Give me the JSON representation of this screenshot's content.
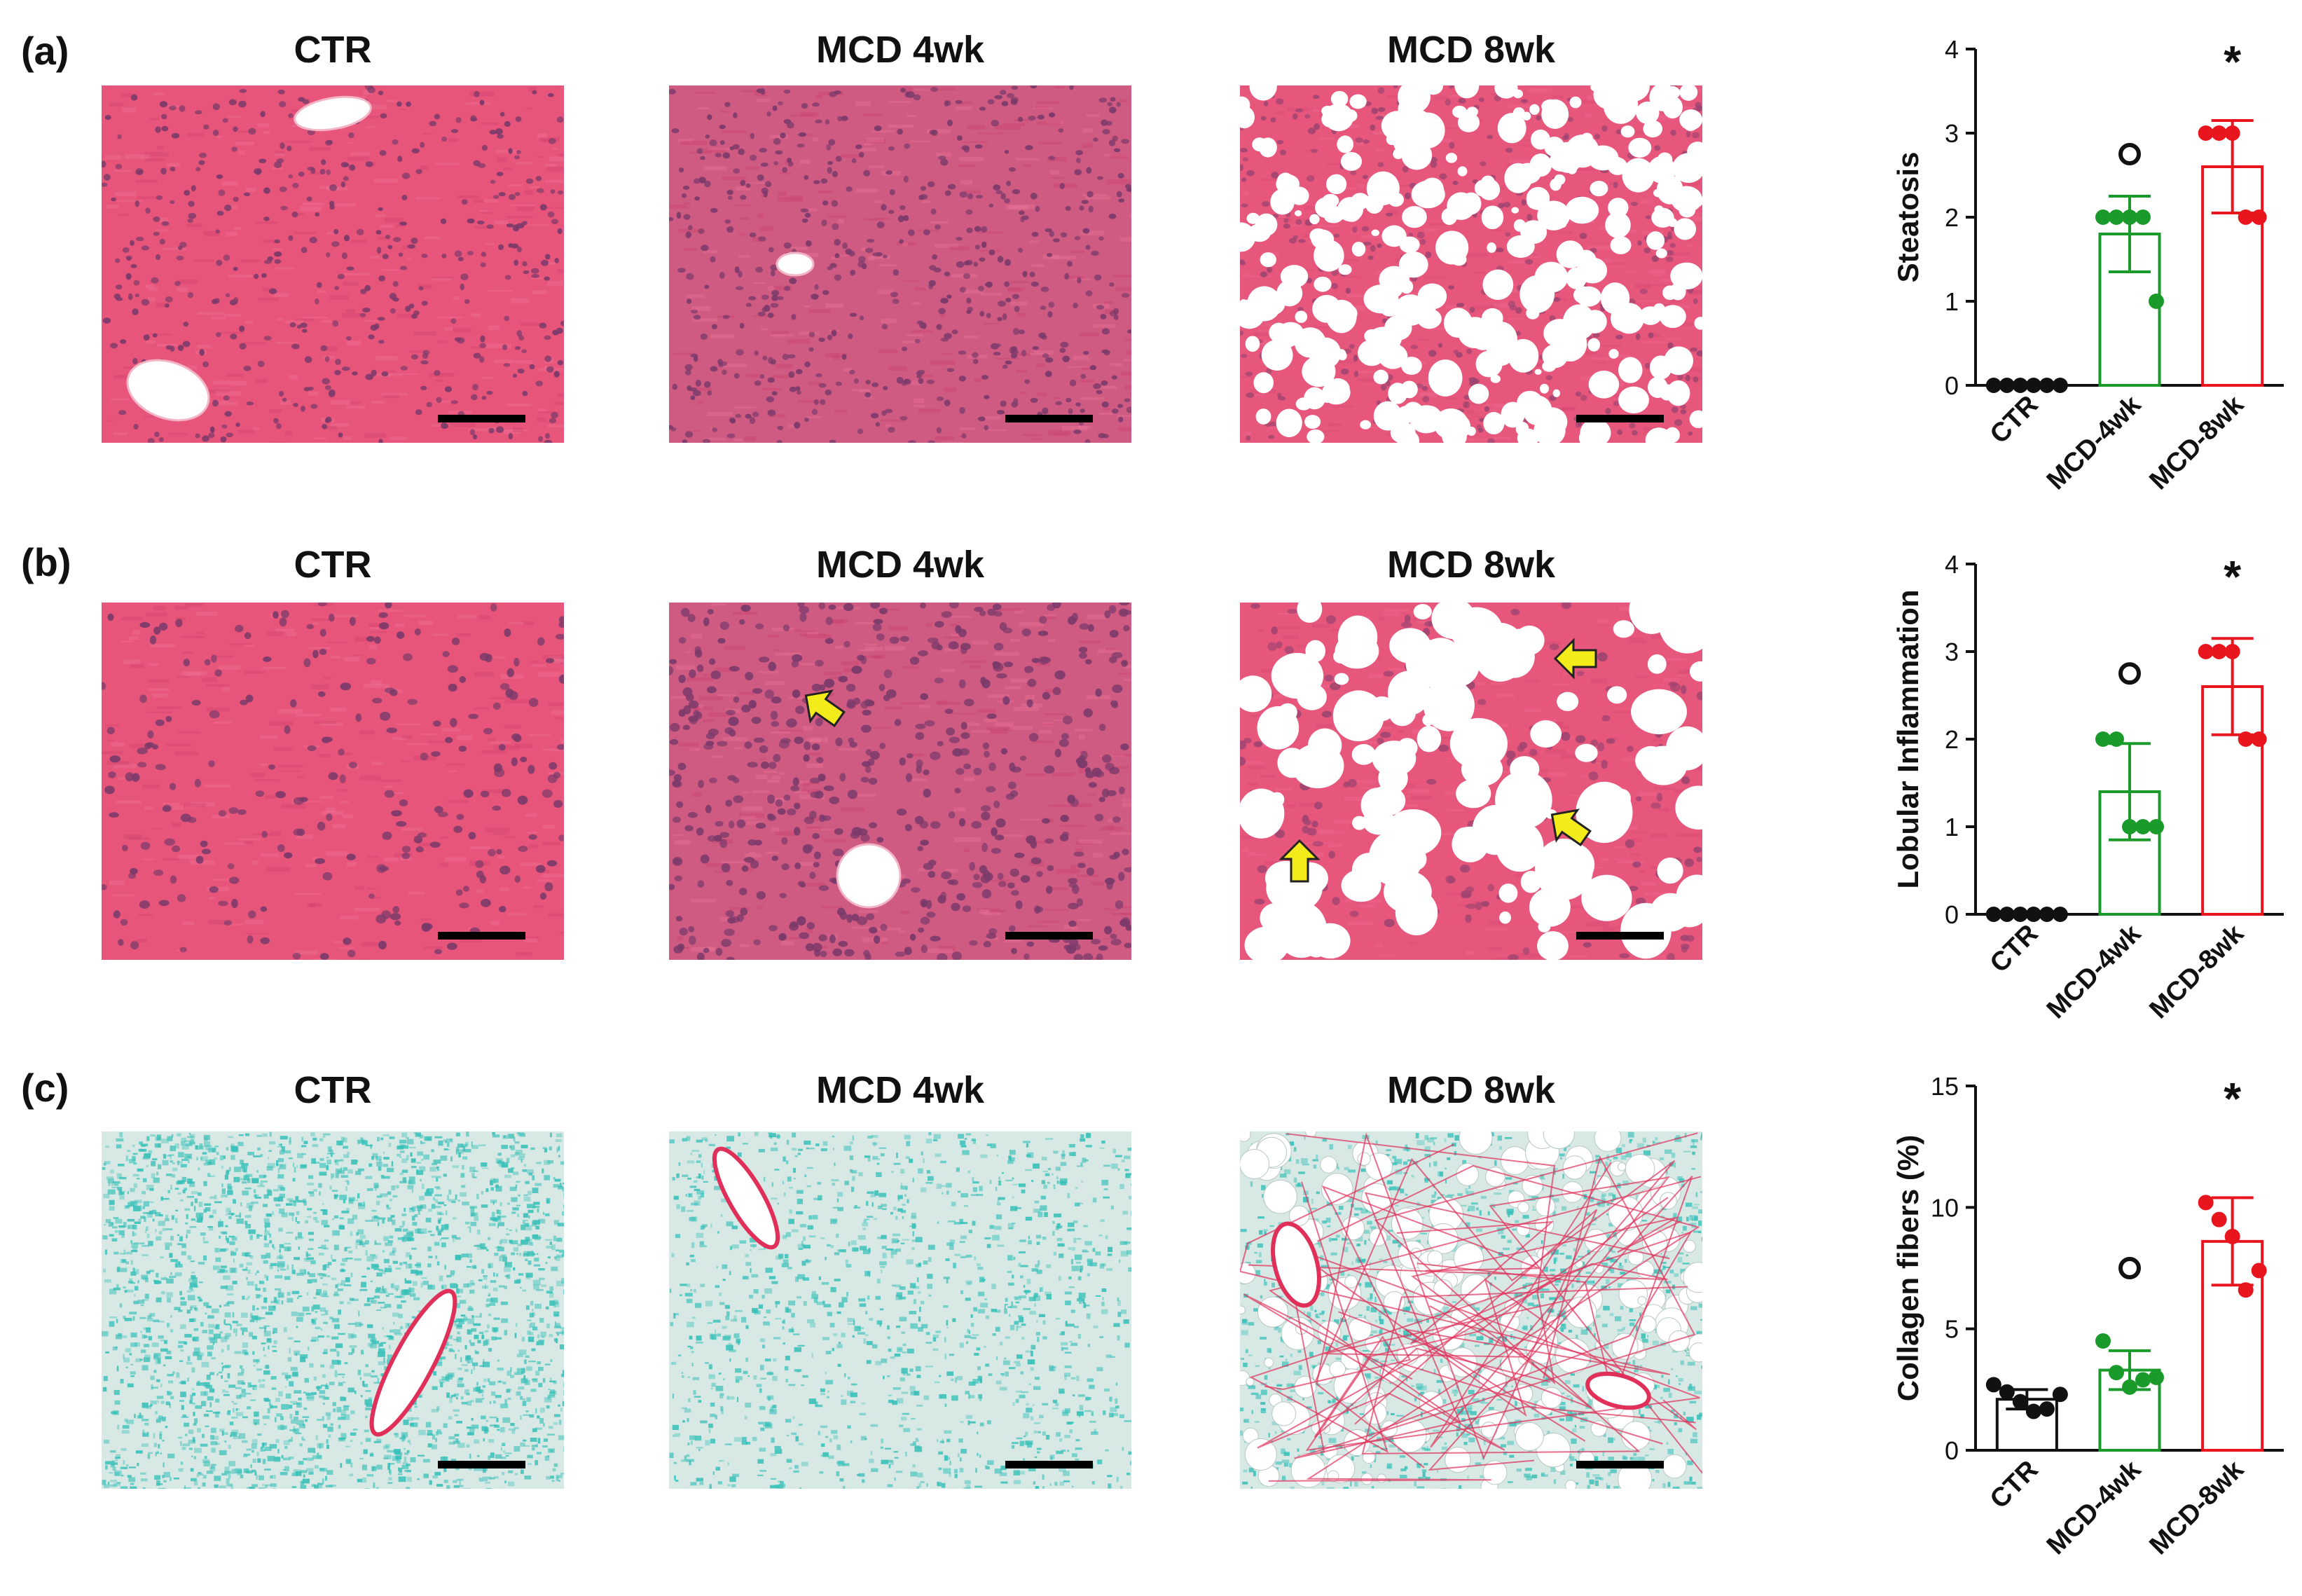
{
  "figure": {
    "rows": [
      {
        "label": "(a)",
        "images": [
          {
            "title": "CTR",
            "stain": "he",
            "features": [
              "vessel-top",
              "vessel-bottom-left"
            ]
          },
          {
            "title": "MCD 4wk",
            "stain": "he-dense",
            "features": [
              "vessel-small"
            ]
          },
          {
            "title": "MCD 8wk",
            "stain": "steatosis",
            "features": []
          }
        ]
      },
      {
        "label": "(b)",
        "images": [
          {
            "title": "CTR",
            "stain": "he-zoom",
            "features": []
          },
          {
            "title": "MCD 4wk",
            "stain": "he-dense-zoom",
            "features": [
              "vessel-bottom",
              "arrow"
            ]
          },
          {
            "title": "MCD 8wk",
            "stain": "steatosis-zoom",
            "features": [
              "arrows"
            ]
          }
        ]
      },
      {
        "label": "(c)",
        "images": [
          {
            "title": "CTR",
            "stain": "sirius",
            "features": [
              "vessel-center"
            ]
          },
          {
            "title": "MCD 4wk",
            "stain": "sirius-light",
            "features": [
              "vessel-top-left"
            ]
          },
          {
            "title": "MCD 8wk",
            "stain": "sirius-fibrosis",
            "features": [
              "vessel-left",
              "vessel-bottom-right"
            ]
          }
        ]
      }
    ]
  },
  "colors": {
    "he_bg": "#e8557a",
    "he_dot": "#7a3a6a",
    "sirius_bg": "#d8e8e4",
    "sirius_cyan": "#35c0b8",
    "collagen_red": "#e0305a",
    "arrow_yellow": "#f4ec1a",
    "ctr": "#111111",
    "mcd4": "#1a9a2a",
    "mcd8": "#e8141e"
  },
  "chart_data": [
    {
      "type": "bar",
      "ylabel": "Steatosis",
      "categories": [
        "CTR",
        "MCD-4wk",
        "MCD-8wk"
      ],
      "values": [
        0,
        1.8,
        2.6
      ],
      "error": [
        0,
        0.45,
        0.55
      ],
      "points": [
        [
          0,
          0,
          0,
          0,
          0,
          0
        ],
        [
          2.0,
          2.0,
          2.0,
          2.0,
          1.0
        ],
        [
          3.0,
          3.0,
          3.0,
          2.0,
          2.0
        ]
      ],
      "outlier": {
        "category": "MCD-4wk",
        "value": 2.75
      },
      "significance": {
        "category": "MCD-8wk",
        "mark": "*"
      },
      "ylim": [
        0,
        4
      ],
      "yticks": [
        "0",
        "1",
        "2",
        "3",
        "4"
      ],
      "tick_values": [
        0,
        1,
        2,
        3,
        4
      ]
    },
    {
      "type": "bar",
      "ylabel": "Lobular Inflammation",
      "categories": [
        "CTR",
        "MCD-4wk",
        "MCD-8wk"
      ],
      "values": [
        0,
        1.4,
        2.6
      ],
      "error": [
        0,
        0.55,
        0.55
      ],
      "points": [
        [
          0,
          0,
          0,
          0,
          0,
          0
        ],
        [
          2.0,
          2.0,
          1.0,
          1.0,
          1.0
        ],
        [
          3.0,
          3.0,
          3.0,
          2.0,
          2.0
        ]
      ],
      "outlier": {
        "category": "MCD-4wk",
        "value": 2.75
      },
      "significance": {
        "category": "MCD-8wk",
        "mark": "*"
      },
      "ylim": [
        0,
        4
      ],
      "yticks": [
        "0",
        "1",
        "2",
        "3",
        "4"
      ],
      "tick_values": [
        0,
        1,
        2,
        3,
        4
      ]
    },
    {
      "type": "bar",
      "ylabel": "Collagen fibers (%)",
      "categories": [
        "CTR",
        "MCD-4wk",
        "MCD-8wk"
      ],
      "values": [
        2.1,
        3.3,
        8.6
      ],
      "error": [
        0.4,
        0.8,
        1.8
      ],
      "points": [
        [
          2.7,
          2.4,
          2.0,
          1.6,
          1.7,
          2.3
        ],
        [
          4.5,
          3.2,
          2.6,
          2.9,
          3.0
        ],
        [
          10.2,
          9.5,
          8.8,
          6.6,
          7.4
        ]
      ],
      "outlier": {
        "category": "MCD-4wk",
        "value": 7.5
      },
      "significance": {
        "category": "MCD-8wk",
        "mark": "*"
      },
      "ylim": [
        0,
        15
      ],
      "yticks": [
        "0",
        "5",
        "10",
        "15"
      ],
      "tick_values": [
        0,
        5,
        10,
        15
      ]
    }
  ]
}
